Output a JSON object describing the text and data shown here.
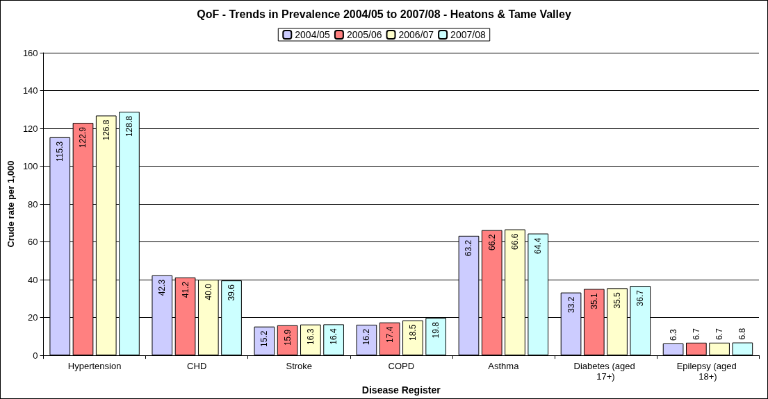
{
  "chart_data": {
    "type": "bar",
    "title": "QoF - Trends in Prevalence 2004/05 to 2007/08 - Heatons & Tame Valley",
    "xlabel": "Disease Register",
    "ylabel": "Crude rate per 1,000",
    "categories": [
      "Hypertension",
      "CHD",
      "Stroke",
      "COPD",
      "Asthma",
      "Diabetes (aged 17+)",
      "Epilepsy (aged 18+)"
    ],
    "series": [
      {
        "name": "2004/05",
        "color": "#ccccff",
        "values": [
          115.3,
          42.3,
          15.2,
          16.2,
          63.2,
          33.2,
          6.3
        ],
        "value_labels": [
          "115.3",
          "42.3",
          "15.2",
          "16.2",
          "63.2",
          "33.2",
          "6.3"
        ]
      },
      {
        "name": "2005/06",
        "color": "#ff8080",
        "values": [
          122.9,
          41.2,
          15.9,
          17.4,
          66.2,
          35.1,
          6.7
        ],
        "value_labels": [
          "122.9",
          "41.2",
          "15.9",
          "17.4",
          "66.2",
          "35.1",
          "6.7"
        ]
      },
      {
        "name": "2006/07",
        "color": "#ffffcc",
        "values": [
          126.8,
          40.0,
          16.3,
          18.5,
          66.6,
          35.5,
          6.7
        ],
        "value_labels": [
          "126.8",
          "40.0",
          "16.3",
          "18.5",
          "66.6",
          "35.5",
          "6.7"
        ]
      },
      {
        "name": "2007/08",
        "color": "#ccffff",
        "values": [
          128.8,
          39.6,
          16.4,
          19.8,
          64.4,
          36.7,
          6.8
        ],
        "value_labels": [
          "128.8",
          "39.6",
          "16.4",
          "19.8",
          "64.4",
          "36.7",
          "6.8"
        ]
      }
    ],
    "ylim": [
      0,
      160
    ],
    "yticks": [
      0,
      20,
      40,
      60,
      80,
      100,
      120,
      140,
      160
    ],
    "grid": "y",
    "legend": "top"
  }
}
